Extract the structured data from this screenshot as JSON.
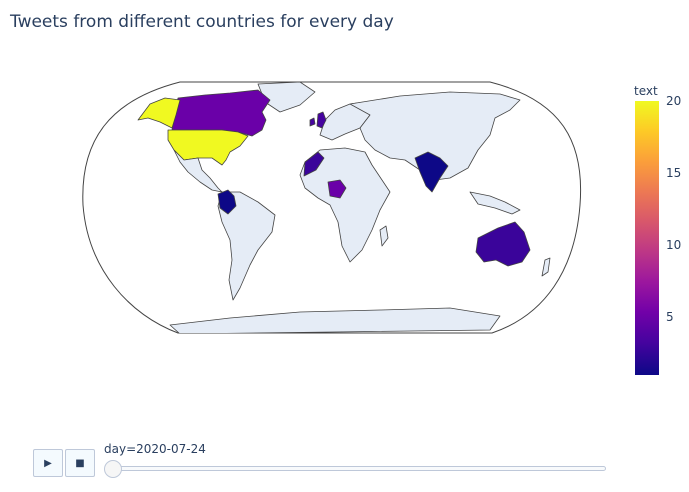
{
  "title": "Tweets from different countries for every day",
  "colorbar": {
    "title": "text",
    "ticks": [
      "20",
      "15",
      "10",
      "5"
    ],
    "range": [
      1,
      20
    ]
  },
  "animation": {
    "play_icon": "▶",
    "stop_icon": "■",
    "current_step": "day=2020-07-24",
    "slider_position": 0
  },
  "map": {
    "projection": "robinson",
    "land_color": "#e5ecf6",
    "highlighted_countries": [
      {
        "name": "United States",
        "value": 20,
        "color": "#f0f921"
      },
      {
        "name": "Canada",
        "value": 7,
        "color": "#6a00a8"
      },
      {
        "name": "United Kingdom",
        "value": 4,
        "color": "#46039f"
      },
      {
        "name": "Ireland",
        "value": 4,
        "color": "#46039f"
      },
      {
        "name": "Morocco",
        "value": 3,
        "color": "#3a049a"
      },
      {
        "name": "Nigeria",
        "value": 6,
        "color": "#6a00a8"
      },
      {
        "name": "India",
        "value": 1,
        "color": "#0d0887"
      },
      {
        "name": "Colombia",
        "value": 1,
        "color": "#0d0887"
      },
      {
        "name": "Australia",
        "value": 3,
        "color": "#3a049a"
      }
    ]
  }
}
